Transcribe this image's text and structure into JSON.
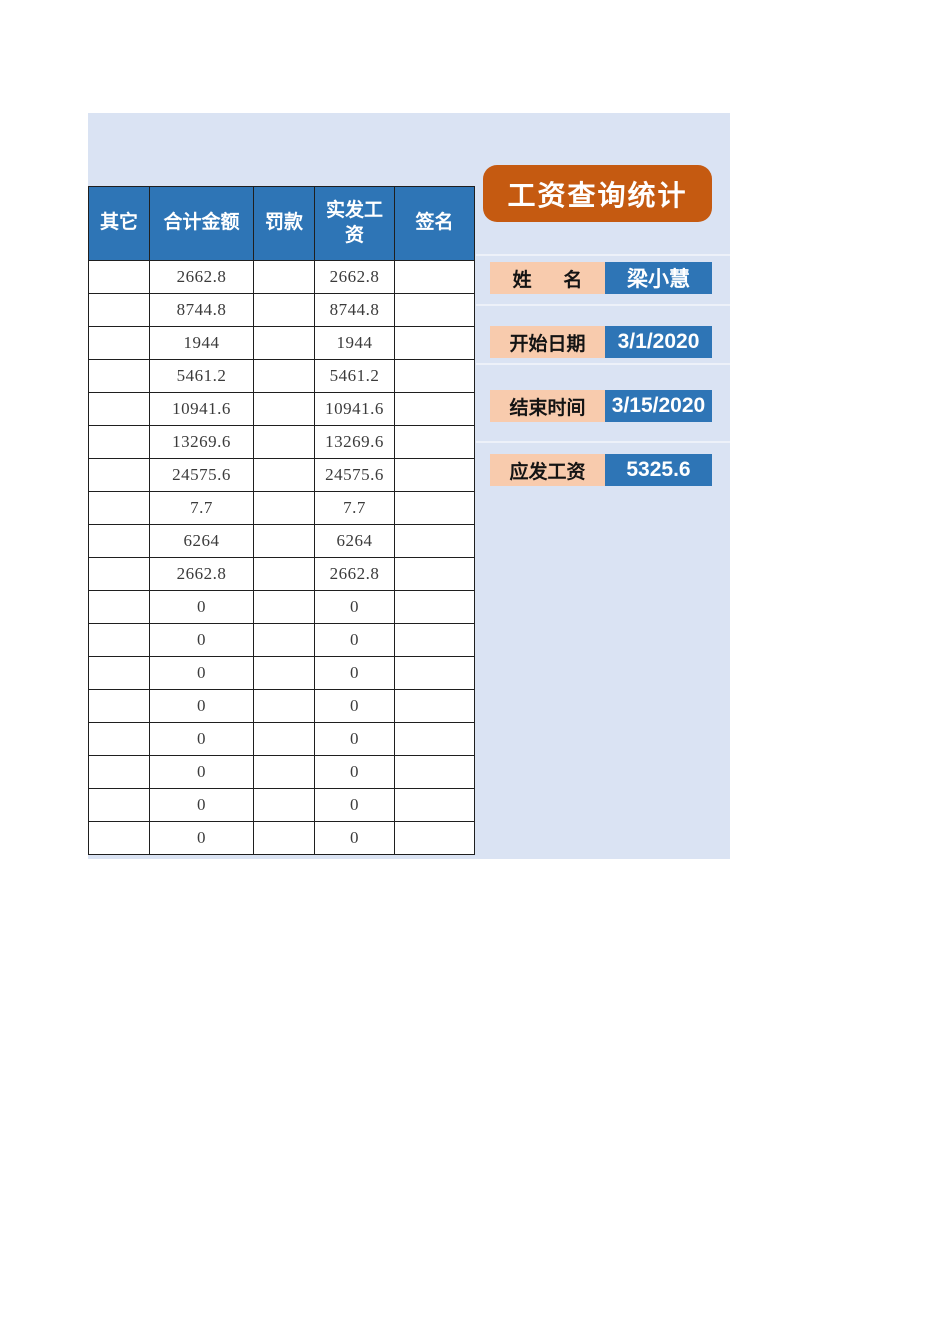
{
  "colors": {
    "panel_bg": "#DAE3F3",
    "header_blue": "#2E75B6",
    "title_orange": "#C55A11",
    "label_peach": "#F8CBAD",
    "table_border": "#1F1F1F",
    "number_text": "#3B3B3B"
  },
  "table": {
    "headers": [
      "其它",
      "合计金额",
      "罚款",
      "实发工资",
      "签名"
    ],
    "rows": [
      [
        "",
        "2662.8",
        "",
        "2662.8",
        ""
      ],
      [
        "",
        "8744.8",
        "",
        "8744.8",
        ""
      ],
      [
        "",
        "1944",
        "",
        "1944",
        ""
      ],
      [
        "",
        "5461.2",
        "",
        "5461.2",
        ""
      ],
      [
        "",
        "10941.6",
        "",
        "10941.6",
        ""
      ],
      [
        "",
        "13269.6",
        "",
        "13269.6",
        ""
      ],
      [
        "",
        "24575.6",
        "",
        "24575.6",
        ""
      ],
      [
        "",
        "7.7",
        "",
        "7.7",
        ""
      ],
      [
        "",
        "6264",
        "",
        "6264",
        ""
      ],
      [
        "",
        "2662.8",
        "",
        "2662.8",
        ""
      ],
      [
        "",
        "0",
        "",
        "0",
        ""
      ],
      [
        "",
        "0",
        "",
        "0",
        ""
      ],
      [
        "",
        "0",
        "",
        "0",
        ""
      ],
      [
        "",
        "0",
        "",
        "0",
        ""
      ],
      [
        "",
        "0",
        "",
        "0",
        ""
      ],
      [
        "",
        "0",
        "",
        "0",
        ""
      ],
      [
        "",
        "0",
        "",
        "0",
        ""
      ],
      [
        "",
        "0",
        "",
        "0",
        ""
      ]
    ]
  },
  "query": {
    "title": "工资查询统计",
    "fields": [
      {
        "label": "姓      名",
        "value": "梁小慧"
      },
      {
        "label": "开始日期",
        "value": "3/1/2020"
      },
      {
        "label": "结束时间",
        "value": "3/15/2020"
      },
      {
        "label": "应发工资",
        "value": "5325.6"
      }
    ]
  }
}
